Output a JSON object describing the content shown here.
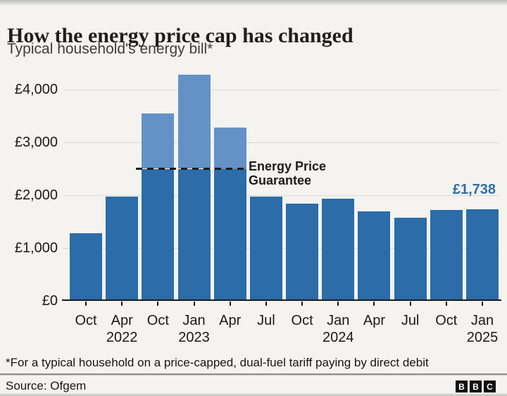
{
  "header": {
    "title": "How the energy price cap has changed",
    "subtitle": "Typical household's energy bill*"
  },
  "chart_data": {
    "type": "bar",
    "title": "How the energy price cap has changed",
    "subtitle": "Typical household's energy bill*",
    "categories": [
      "Oct 2021",
      "Apr 2022",
      "Oct 2022",
      "Jan 2023",
      "Apr 2023",
      "Jul 2023",
      "Oct 2023",
      "Jan 2024",
      "Apr 2024",
      "Jul 2024",
      "Oct 2024",
      "Jan 2025"
    ],
    "x_tick_months": [
      "Oct",
      "Apr",
      "Oct",
      "Jan",
      "Apr",
      "Jul",
      "Oct",
      "Jan",
      "Apr",
      "Jul",
      "Oct",
      "Jan"
    ],
    "x_tick_years": [
      "",
      "2022",
      "",
      "2023",
      "",
      "",
      "",
      "2024",
      "",
      "",
      "",
      "2025"
    ],
    "values": [
      1277,
      1971,
      3549,
      4279,
      3280,
      1976,
      1834,
      1928,
      1690,
      1568,
      1717,
      1738
    ],
    "ylabel": "",
    "xlabel": "",
    "ylim": [
      0,
      4360
    ],
    "grid": true,
    "y_ticks": [
      {
        "value": 0,
        "label": "£0"
      },
      {
        "value": 1000,
        "label": "£1,000"
      },
      {
        "value": 2000,
        "label": "£2,000"
      },
      {
        "value": 3000,
        "label": "£3,000"
      },
      {
        "value": 4000,
        "label": "£4,000"
      }
    ],
    "annotation": {
      "value": 2500,
      "label": "Energy Price Guarantee",
      "label_lines": [
        "Energy Price",
        "Guarantee"
      ]
    },
    "last_point_label": "£1,738",
    "colors": {
      "bar": "#2b6ca9",
      "above_guarantee": "#6492c6",
      "value_label": "#2f6da8",
      "gridline": "#d9d8d5",
      "axis": "#1a1a1a"
    },
    "legend_position": "none"
  },
  "footnote": "*For a typical household on a price-capped, dual-fuel tariff paying by direct debit",
  "source": "Source: Ofgem",
  "logo_letters": [
    "B",
    "B",
    "C"
  ]
}
